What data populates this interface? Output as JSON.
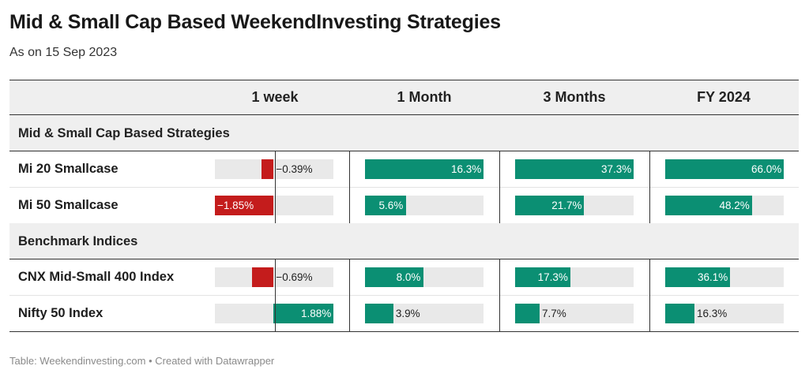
{
  "title": "Mid & Small Cap Based WeekendInvesting Strategies",
  "subtitle": "As on 15 Sep 2023",
  "footer": "Table: Weekendinvesting.com • Created with Datawrapper",
  "colors": {
    "positive": "#0b8f73",
    "negative": "#c41c1c",
    "track": "#e9e9e9",
    "header_bg": "#efefef"
  },
  "chart_data": {
    "type": "table",
    "columns": [
      "1 week",
      "1 Month",
      "3 Months",
      "FY 2024"
    ],
    "column_ranges": [
      [
        -1.85,
        1.88
      ],
      [
        0,
        16.3
      ],
      [
        0,
        37.3
      ],
      [
        0,
        66.0
      ]
    ],
    "groups": [
      {
        "label": "Mid & Small Cap Based Strategies",
        "rows": [
          {
            "name": "Mi 20 Smallcase",
            "values": [
              -0.39,
              16.3,
              37.3,
              66.0
            ],
            "labels": [
              "−0.39%",
              "16.3%",
              "37.3%",
              "66.0%"
            ]
          },
          {
            "name": "Mi 50 Smallcase",
            "values": [
              -1.85,
              5.6,
              21.7,
              48.2
            ],
            "labels": [
              "−1.85%",
              "5.6%",
              "21.7%",
              "48.2%"
            ]
          }
        ]
      },
      {
        "label": "Benchmark Indices",
        "rows": [
          {
            "name": "CNX Mid-Small 400 Index",
            "values": [
              -0.69,
              8.0,
              17.3,
              36.1
            ],
            "labels": [
              "−0.69%",
              "8.0%",
              "17.3%",
              "36.1%"
            ]
          },
          {
            "name": "Nifty 50 Index",
            "values": [
              1.88,
              3.9,
              7.7,
              16.3
            ],
            "labels": [
              "1.88%",
              "3.9%",
              "7.7%",
              "16.3%"
            ]
          }
        ]
      }
    ]
  }
}
